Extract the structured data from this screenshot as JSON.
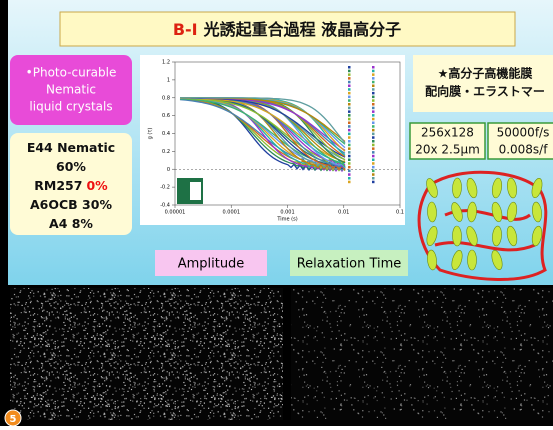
{
  "title": {
    "label": "B-Ⅰ",
    "text": "光誘起重合過程 液晶高分子"
  },
  "intro": {
    "lines": [
      "•Photo-curable",
      "Nematic",
      "liquid crystals"
    ]
  },
  "composition": {
    "lines": [
      {
        "text": "E44 Nematic"
      },
      {
        "text": "60%"
      },
      {
        "text": "RM257",
        "highlight": "0%"
      },
      {
        "text": "A6OCB 30%"
      },
      {
        "text": "A4 8%"
      }
    ]
  },
  "highlight": {
    "lines": [
      "★高分子高機能膜",
      "配向膜・エラストマー"
    ]
  },
  "specs": [
    {
      "lines": [
        "256x128",
        "20x 2.5μm"
      ]
    },
    {
      "lines": [
        "50000f/s",
        "0.008s/f"
      ]
    }
  ],
  "plot": {
    "ylabel": "g (τ)",
    "xlabel": "Time (s)",
    "yticks": [
      "1.2",
      "1",
      "0.8",
      "0.6",
      "0.4",
      "0.2",
      "0",
      "-0.2",
      "-0.4"
    ],
    "xticks": [
      "0.00001",
      "0.0001",
      "0.001",
      "0.01",
      "0.1"
    ]
  },
  "labels": {
    "amplitude": "Amplitude",
    "relaxation": "Relaxation Time"
  },
  "slide_number": "5"
}
